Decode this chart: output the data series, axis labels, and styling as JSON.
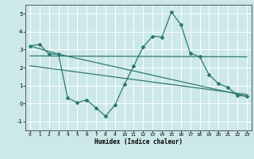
{
  "xlabel": "Humidex (Indice chaleur)",
  "xlim": [
    -0.5,
    23.5
  ],
  "ylim": [
    -1.5,
    5.5
  ],
  "yticks": [
    -1,
    0,
    1,
    2,
    3,
    4,
    5
  ],
  "xticks": [
    0,
    1,
    2,
    3,
    4,
    5,
    6,
    7,
    8,
    9,
    10,
    11,
    12,
    13,
    14,
    15,
    16,
    17,
    18,
    19,
    20,
    21,
    22,
    23
  ],
  "background_color": "#cce8e8",
  "line_color": "#2d7a6e",
  "line1_x": [
    0,
    1,
    2,
    3,
    4,
    5,
    6,
    7,
    8,
    9,
    10,
    11,
    12,
    13,
    14,
    15,
    16,
    17,
    18,
    19,
    20,
    21,
    22,
    23
  ],
  "line1_y": [
    3.2,
    3.3,
    2.75,
    2.75,
    0.3,
    0.05,
    0.2,
    -0.25,
    -0.7,
    -0.1,
    1.05,
    2.1,
    3.15,
    3.75,
    3.7,
    5.1,
    4.4,
    2.8,
    2.6,
    1.6,
    1.1,
    0.9,
    0.45,
    0.4
  ],
  "line2_x": [
    0,
    3,
    23
  ],
  "line2_y": [
    3.2,
    2.75,
    0.4
  ],
  "line3_x": [
    0,
    23
  ],
  "line3_y": [
    2.65,
    2.6
  ],
  "line4_x": [
    0,
    23
  ],
  "line4_y": [
    2.1,
    0.5
  ]
}
